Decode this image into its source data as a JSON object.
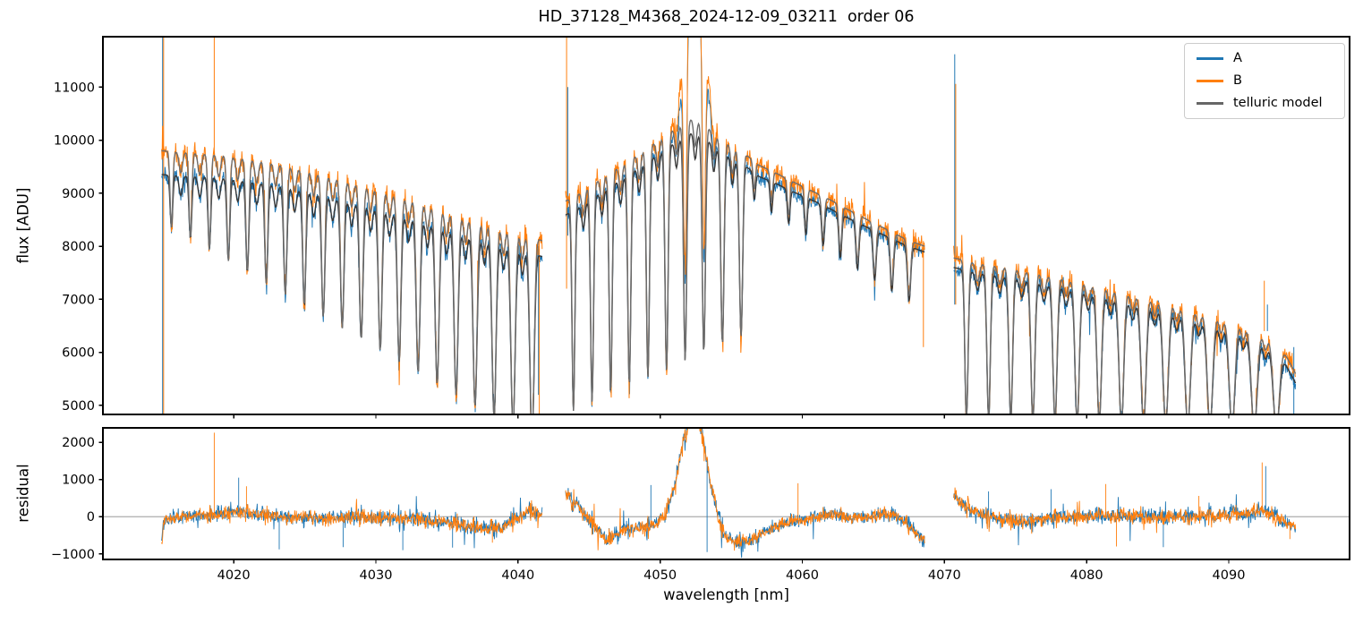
{
  "chart_data": {
    "type": "line",
    "title": "HD_37128_M4368_2024-12-09_03211  order 06",
    "xlabel": "wavelength [nm]",
    "xlim": [
      4010.8,
      4098.5
    ],
    "xticks": [
      4020,
      4030,
      4040,
      4050,
      4060,
      4070,
      4080,
      4090
    ],
    "xtick_labels": [
      "4020",
      "4030",
      "4040",
      "4050",
      "4060",
      "4070",
      "4080",
      "4090"
    ],
    "panels": [
      {
        "name": "flux",
        "ylabel": "flux [ADU]",
        "ylim": [
          4830,
          11950
        ],
        "yticks": [
          5000,
          6000,
          7000,
          8000,
          9000,
          10000,
          11000
        ],
        "ytick_labels": [
          "5000",
          "6000",
          "7000",
          "8000",
          "9000",
          "10000",
          "11000"
        ]
      },
      {
        "name": "residual",
        "ylabel": "residual",
        "ylim": [
          -1150,
          2390
        ],
        "yticks": [
          -1000,
          0,
          1000,
          2000
        ],
        "ytick_labels": [
          "−1000",
          "0",
          "1000",
          "2000"
        ]
      }
    ],
    "legend": [
      {
        "label": "A",
        "color": "#1f77b4"
      },
      {
        "label": "B",
        "color": "#ff7f0e"
      },
      {
        "label": "telluric model",
        "color": "#666666"
      }
    ],
    "style": {
      "series_A_color": "#1f77b4",
      "series_B_color": "#ff7f0e",
      "model_upper_color": "#6e6e6e",
      "model_lower_color": "#383838",
      "spine_color": "#000000",
      "zero_line_color": "#8a8a8a",
      "data_linewidth": 1.0,
      "model_linewidth": 1.4
    },
    "noise_seed": 20241209,
    "flux_segments": [
      {
        "x": [
          4014.93,
          4041.7
        ],
        "cont_B": [
          [
            4014.93,
            9800
          ],
          [
            4017,
            9760
          ],
          [
            4019,
            9720
          ],
          [
            4021,
            9640
          ],
          [
            4023,
            9560
          ],
          [
            4025,
            9430
          ],
          [
            4027,
            9300
          ],
          [
            4029,
            9150
          ],
          [
            4031,
            9000
          ],
          [
            4033,
            8850
          ],
          [
            4035,
            8650
          ],
          [
            4037,
            8500
          ],
          [
            4039,
            8350
          ],
          [
            4041,
            8200
          ],
          [
            4041.7,
            8100
          ]
        ],
        "cont_A": [
          [
            4014.93,
            9350
          ],
          [
            4017,
            9320
          ],
          [
            4019,
            9290
          ],
          [
            4021,
            9220
          ],
          [
            4023,
            9150
          ],
          [
            4025,
            9030
          ],
          [
            4027,
            8910
          ],
          [
            4029,
            8770
          ],
          [
            4031,
            8630
          ],
          [
            4033,
            8490
          ],
          [
            4035,
            8310
          ],
          [
            4037,
            8170
          ],
          [
            4039,
            8030
          ],
          [
            4041,
            7890
          ],
          [
            4041.7,
            7800
          ]
        ],
        "line_groups": [
          {
            "start": 4015.62,
            "spacing": 1.335,
            "count": 20,
            "w": [
              0.13,
              0.21
            ],
            "floor": [
              8350,
              4350
            ]
          },
          {
            "start": 4016.28,
            "spacing": 1.335,
            "count": 19,
            "w": [
              0.17,
              0.17
            ],
            "depth": [
              0.04,
              0.06
            ]
          }
        ],
        "noise_A": 150,
        "noise_B": 190,
        "spikes": [
          {
            "x": 4015.0,
            "y0": 4600,
            "y1": 11940,
            "c": "A"
          },
          {
            "x": 4015.07,
            "y0": 4600,
            "y1": 11940,
            "c": "B"
          },
          {
            "x": 4018.63,
            "y0": 9600,
            "y1": 11940,
            "c": "B"
          },
          {
            "x": 4041.5,
            "y0": 4400,
            "y1": 8100,
            "c": "B"
          },
          {
            "x": 4041.44,
            "y0": 5200,
            "y1": 8000,
            "c": "A"
          }
        ]
      },
      {
        "x": [
          4043.35,
          4068.6
        ],
        "cont_B": [
          [
            4043.35,
            8850
          ],
          [
            4044.5,
            9020
          ],
          [
            4046,
            9300
          ],
          [
            4047.5,
            9560
          ],
          [
            4049,
            9830
          ],
          [
            4050.5,
            10120
          ],
          [
            4051.5,
            10300
          ],
          [
            4052.35,
            10420
          ],
          [
            4053.2,
            10280
          ],
          [
            4054,
            10080
          ],
          [
            4055,
            9880
          ],
          [
            4056,
            9730
          ],
          [
            4057,
            9520
          ],
          [
            4058,
            9400
          ],
          [
            4059,
            9260
          ],
          [
            4060,
            9130
          ],
          [
            4061,
            9000
          ],
          [
            4062,
            8870
          ],
          [
            4063,
            8720
          ],
          [
            4064,
            8580
          ],
          [
            4065,
            8440
          ],
          [
            4066,
            8310
          ],
          [
            4067,
            8170
          ],
          [
            4068,
            8060
          ],
          [
            4068.6,
            8000
          ]
        ],
        "cont_A": [
          [
            4043.35,
            8590
          ],
          [
            4044.5,
            8760
          ],
          [
            4046,
            9040
          ],
          [
            4047.5,
            9300
          ],
          [
            4049,
            9570
          ],
          [
            4050.5,
            9860
          ],
          [
            4051.5,
            10040
          ],
          [
            4052.35,
            10160
          ],
          [
            4053.2,
            10030
          ],
          [
            4054,
            9840
          ],
          [
            4055,
            9650
          ],
          [
            4056,
            9510
          ],
          [
            4057,
            9310
          ],
          [
            4058,
            9200
          ],
          [
            4059,
            9070
          ],
          [
            4060,
            8950
          ],
          [
            4061,
            8830
          ],
          [
            4062,
            8700
          ],
          [
            4063,
            8560
          ],
          [
            4064,
            8430
          ],
          [
            4065,
            8300
          ],
          [
            4066,
            8180
          ],
          [
            4067,
            8050
          ],
          [
            4068,
            7950
          ],
          [
            4068.6,
            7890
          ]
        ],
        "line_groups": [
          {
            "start": 4043.9,
            "spacing": 1.31,
            "count": 10,
            "w": [
              0.14,
              0.16
            ],
            "floor": [
              4900,
              6300
            ]
          },
          {
            "start": 4056.62,
            "spacing": 1.21,
            "count": 10,
            "w": [
              0.12,
              0.16
            ],
            "depth": [
              0.055,
              0.13
            ]
          },
          {
            "start": 4044.6,
            "spacing": 1.31,
            "count": 9,
            "w": [
              0.15,
              0.15
            ],
            "depth": [
              0.05,
              0.05
            ]
          }
        ],
        "emission": {
          "center": 4052.45,
          "amp": 3300,
          "sigma": 0.85
        },
        "noise_A": 150,
        "noise_B": 200,
        "spikes": [
          {
            "x": 4043.42,
            "y0": 7200,
            "y1": 11940,
            "c": "B"
          },
          {
            "x": 4043.5,
            "y0": 8200,
            "y1": 11000,
            "c": "A"
          },
          {
            "x": 4068.52,
            "y0": 6100,
            "y1": 8100,
            "c": "B"
          }
        ]
      },
      {
        "x": [
          4070.65,
          4094.7
        ],
        "cont_B": [
          [
            4070.65,
            7780
          ],
          [
            4072,
            7700
          ],
          [
            4074,
            7620
          ],
          [
            4076,
            7520
          ],
          [
            4078,
            7420
          ],
          [
            4080,
            7300
          ],
          [
            4082,
            7180
          ],
          [
            4084,
            7050
          ],
          [
            4086,
            6920
          ],
          [
            4088,
            6780
          ],
          [
            4090,
            6620
          ],
          [
            4091.5,
            6480
          ],
          [
            4092.8,
            6300
          ],
          [
            4093.8,
            6050
          ],
          [
            4094.7,
            5600
          ]
        ],
        "cont_A": [
          [
            4070.65,
            7600
          ],
          [
            4072,
            7520
          ],
          [
            4074,
            7440
          ],
          [
            4076,
            7340
          ],
          [
            4078,
            7240
          ],
          [
            4080,
            7120
          ],
          [
            4082,
            7000
          ],
          [
            4084,
            6870
          ],
          [
            4086,
            6740
          ],
          [
            4088,
            6600
          ],
          [
            4090,
            6440
          ],
          [
            4091.5,
            6300
          ],
          [
            4092.8,
            6120
          ],
          [
            4093.8,
            5870
          ],
          [
            4094.7,
            5420
          ]
        ],
        "line_groups": [
          {
            "start": 4071.55,
            "spacing": 1.557,
            "count": 15,
            "w": [
              0.16,
              0.3
            ],
            "floor": [
              4750,
              4550
            ]
          },
          {
            "start": 4072.33,
            "spacing": 1.557,
            "count": 14,
            "w": [
              0.2,
              0.2
            ],
            "depth": [
              0.045,
              0.045
            ]
          }
        ],
        "noise_A": 150,
        "noise_B": 185,
        "spikes": [
          {
            "x": 4070.72,
            "y0": 6900,
            "y1": 11620,
            "c": "A"
          },
          {
            "x": 4070.79,
            "y0": 6900,
            "y1": 11060,
            "c": "B"
          },
          {
            "x": 4092.5,
            "y0": 6400,
            "y1": 7350,
            "c": "B"
          },
          {
            "x": 4092.72,
            "y0": 6400,
            "y1": 6900,
            "c": "A"
          },
          {
            "x": 4094.58,
            "y0": 4830,
            "y1": 6100,
            "c": "A"
          }
        ]
      }
    ],
    "residual_segments": [
      {
        "x": [
          4014.93,
          4041.7
        ],
        "base": [
          [
            4014.93,
            -650
          ],
          [
            4015.1,
            -150
          ],
          [
            4016,
            0
          ],
          [
            4018,
            40
          ],
          [
            4019.5,
            90
          ],
          [
            4020.5,
            140
          ],
          [
            4021.5,
            90
          ],
          [
            4023,
            0
          ],
          [
            4025,
            -20
          ],
          [
            4027,
            -40
          ],
          [
            4029,
            0
          ],
          [
            4031,
            -30
          ],
          [
            4033,
            -60
          ],
          [
            4034.5,
            -120
          ],
          [
            4036,
            -230
          ],
          [
            4037.5,
            -330
          ],
          [
            4038.8,
            -300
          ],
          [
            4039.8,
            -80
          ],
          [
            4040.8,
            170
          ],
          [
            4041.7,
            60
          ]
        ],
        "noise_A": 165,
        "noise_B": 155,
        "spikes": [
          {
            "x": 4018.63,
            "v": 2260,
            "c": "B"
          },
          {
            "x": 4020.35,
            "v": 1050,
            "c": "A"
          },
          {
            "x": 4020.9,
            "v": 820,
            "c": "B"
          },
          {
            "x": 4023.2,
            "v": -880,
            "c": "A"
          },
          {
            "x": 4027.7,
            "v": -820,
            "c": "A"
          },
          {
            "x": 4031.9,
            "v": -900,
            "c": "A"
          },
          {
            "x": 4035.4,
            "v": -830,
            "c": "A"
          },
          {
            "x": 4038.2,
            "v": -700,
            "c": "B"
          }
        ]
      },
      {
        "x": [
          4043.35,
          4068.6
        ],
        "base": [
          [
            4043.35,
            650
          ],
          [
            4044.3,
            250
          ],
          [
            4045.2,
            -200
          ],
          [
            4046.2,
            -620
          ],
          [
            4047.2,
            -400
          ],
          [
            4048.2,
            -300
          ],
          [
            4049.2,
            -280
          ],
          [
            4049.8,
            -150
          ],
          [
            4050.4,
            100
          ],
          [
            4051.0,
            800
          ],
          [
            4051.5,
            1800
          ],
          [
            4052.0,
            2500
          ],
          [
            4052.6,
            2600
          ],
          [
            4053.0,
            2200
          ],
          [
            4053.5,
            1000
          ],
          [
            4054.0,
            100
          ],
          [
            4054.6,
            -550
          ],
          [
            4055.4,
            -700
          ],
          [
            4056.4,
            -650
          ],
          [
            4057.4,
            -400
          ],
          [
            4058.4,
            -220
          ],
          [
            4059.4,
            -120
          ],
          [
            4060.4,
            -80
          ],
          [
            4061.5,
            80
          ],
          [
            4062.5,
            60
          ],
          [
            4063.5,
            -60
          ],
          [
            4064.5,
            0
          ],
          [
            4065.5,
            60
          ],
          [
            4066.5,
            30
          ],
          [
            4067.3,
            -150
          ],
          [
            4068.0,
            -450
          ],
          [
            4068.6,
            -650
          ]
        ],
        "noise_A": 170,
        "noise_B": 160,
        "spikes": [
          {
            "x": 4049.35,
            "v": 850,
            "c": "A"
          },
          {
            "x": 4053.3,
            "v": -950,
            "c": "A"
          },
          {
            "x": 4059.7,
            "v": 900,
            "c": "B"
          }
        ]
      },
      {
        "x": [
          4070.65,
          4094.7
        ],
        "base": [
          [
            4070.65,
            620
          ],
          [
            4071.2,
            350
          ],
          [
            4072,
            150
          ],
          [
            4073,
            40
          ],
          [
            4074,
            -60
          ],
          [
            4075.5,
            -140
          ],
          [
            4077,
            -60
          ],
          [
            4078.5,
            0
          ],
          [
            4081,
            10
          ],
          [
            4084,
            0
          ],
          [
            4086,
            -20
          ],
          [
            4088,
            10
          ],
          [
            4090,
            40
          ],
          [
            4091.5,
            90
          ],
          [
            4092.6,
            150
          ],
          [
            4093.6,
            -80
          ],
          [
            4094.7,
            -280
          ]
        ],
        "noise_A": 165,
        "noise_B": 155,
        "spikes": [
          {
            "x": 4073.1,
            "v": 680,
            "c": "A"
          },
          {
            "x": 4077.5,
            "v": 740,
            "c": "A"
          },
          {
            "x": 4081.35,
            "v": 880,
            "c": "B"
          },
          {
            "x": 4082.1,
            "v": -800,
            "c": "B"
          },
          {
            "x": 4085.4,
            "v": -820,
            "c": "A"
          },
          {
            "x": 4087.9,
            "v": 560,
            "c": "B"
          },
          {
            "x": 4092.35,
            "v": 1460,
            "c": "B"
          },
          {
            "x": 4092.6,
            "v": 1360,
            "c": "A"
          },
          {
            "x": 4094.3,
            "v": -600,
            "c": "B"
          }
        ]
      }
    ]
  }
}
